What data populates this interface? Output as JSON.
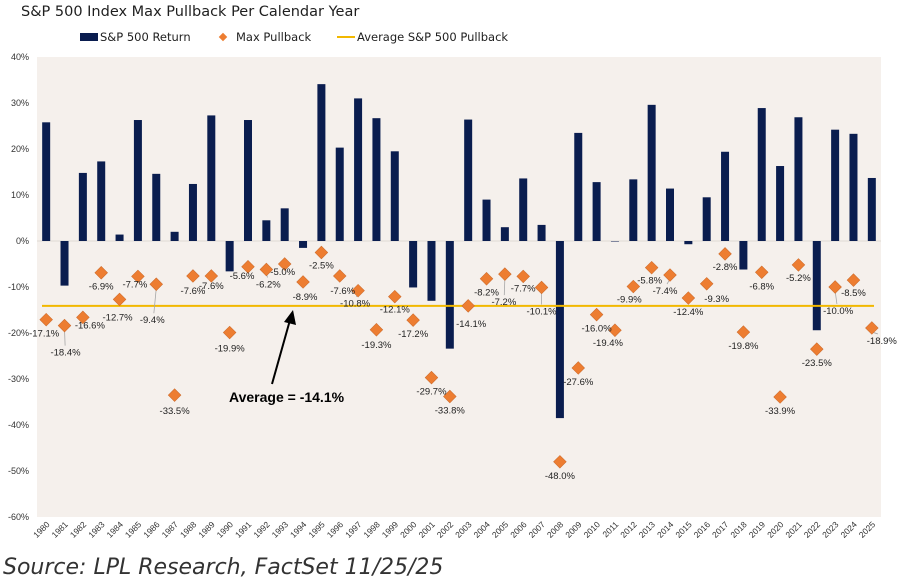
{
  "chart_data": {
    "type": "bar",
    "title": "S&P 500 Index Max Pullback Per Calendar Year",
    "xlabel": "",
    "ylabel": "",
    "ylim": [
      -60,
      40
    ],
    "yticks": [
      40,
      30,
      20,
      10,
      0,
      -10,
      -20,
      -30,
      -40,
      -50,
      -60
    ],
    "ytick_labels": [
      "40%",
      "30%",
      "20%",
      "10%",
      "0%",
      "-10%",
      "-20%",
      "-30%",
      "-40%",
      "-50%",
      "-60%"
    ],
    "legend_position": "top",
    "legend": [
      "S&P 500 Return",
      "Max Pullback",
      "Average S&P 500 Pullback"
    ],
    "categories": [
      "1980",
      "1981",
      "1982",
      "1983",
      "1984",
      "1985",
      "1986",
      "1987",
      "1988",
      "1989",
      "1990",
      "1991",
      "1992",
      "1993",
      "1994",
      "1995",
      "1996",
      "1997",
      "1998",
      "1999",
      "2000",
      "2001",
      "2002",
      "2003",
      "2004",
      "2005",
      "2006",
      "2007",
      "2008",
      "2009",
      "2010",
      "2011",
      "2012",
      "2013",
      "2014",
      "2015",
      "2016",
      "2017",
      "2018",
      "2019",
      "2020",
      "2021",
      "2022",
      "2023",
      "2024",
      "2025"
    ],
    "series": [
      {
        "name": "S&P 500 Return",
        "type": "bar",
        "color": "#0a1d4f",
        "values": [
          25.8,
          -9.7,
          14.8,
          17.3,
          1.4,
          26.3,
          14.6,
          2.0,
          12.4,
          27.3,
          -6.6,
          26.3,
          4.5,
          7.1,
          -1.5,
          34.1,
          20.3,
          31.0,
          26.7,
          19.5,
          -10.1,
          -13.0,
          -23.4,
          26.4,
          9.0,
          3.0,
          13.6,
          3.5,
          -38.5,
          23.5,
          12.8,
          0.0,
          13.4,
          29.6,
          11.4,
          -0.7,
          9.5,
          19.4,
          -6.2,
          28.9,
          16.3,
          26.9,
          -19.4,
          24.2,
          23.3,
          13.7
        ]
      },
      {
        "name": "Max Pullback",
        "type": "scatter",
        "color": "#ed7d31",
        "values": [
          -17.1,
          -18.4,
          -16.6,
          -6.9,
          -12.7,
          -7.7,
          -9.4,
          -33.5,
          -7.6,
          -7.6,
          -19.9,
          -5.6,
          -6.2,
          -5.0,
          -8.9,
          -2.5,
          -7.6,
          -10.8,
          -19.3,
          -12.1,
          -17.2,
          -29.7,
          -33.8,
          -14.1,
          -8.2,
          -7.2,
          -7.7,
          -10.1,
          -48.0,
          -27.6,
          -16.0,
          -19.4,
          -9.9,
          -5.8,
          -7.4,
          -12.4,
          -9.3,
          -2.8,
          -19.8,
          -6.8,
          -33.9,
          -5.2,
          -23.5,
          -10.0,
          -8.5,
          -18.9
        ],
        "labels": [
          "-17.1%",
          "-18.4%",
          "-16.6%",
          "-6.9%",
          "-12.7%",
          "-7.7%",
          "-9.4%",
          "-33.5%",
          "-7.6%",
          "-7.6%",
          "-19.9%",
          "-5.6%",
          "-6.2%",
          "-5.0%",
          "-8.9%",
          "-2.5%",
          "-7.6%",
          "-10.8%",
          "-19.3%",
          "-12.1%",
          "-17.2%",
          "-29.7%",
          "-33.8%",
          "-14.1%",
          "-8.2%",
          "-7.2%",
          "-7.7%",
          "-10.1%",
          "-48.0%",
          "-27.6%",
          "-16.0%",
          "-19.4%",
          "-9.9%",
          "-5.8%",
          "-7.4%",
          "-12.4%",
          "-9.3%",
          "-2.8%",
          "-19.8%",
          "-6.8%",
          "-33.9%",
          "-5.2%",
          "-23.5%",
          "-10.0%",
          "-8.5%",
          "-18.9%"
        ]
      },
      {
        "name": "Average S&P 500 Pullback",
        "type": "line",
        "color": "#f2b800",
        "value": -14.1
      }
    ],
    "annotation": "Average = -14.1%",
    "plot_background": "#f5f0ec"
  },
  "source": "Source: LPL Research, FactSet 11/25/25"
}
